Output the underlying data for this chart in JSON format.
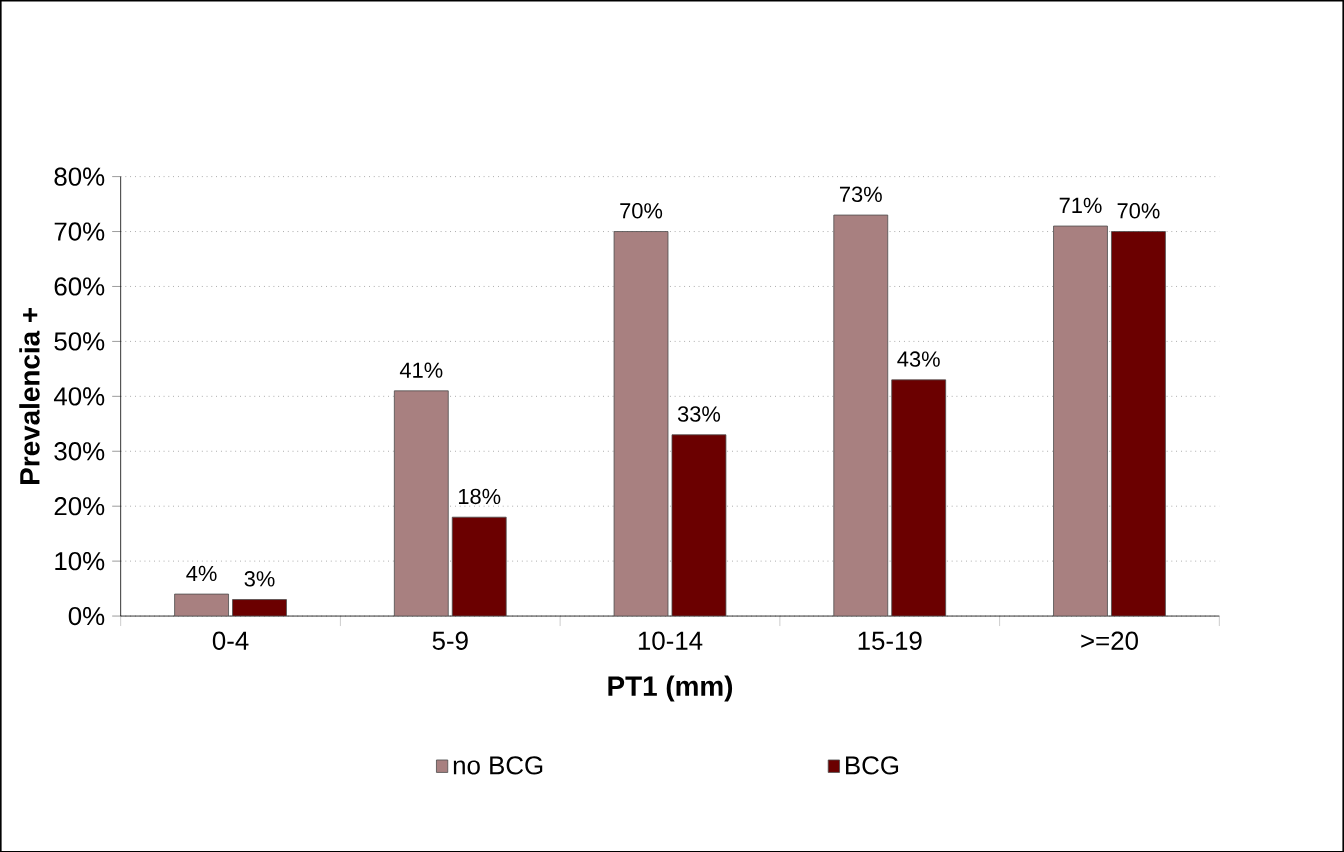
{
  "chart_data": {
    "type": "bar",
    "xlabel": "PT1 (mm)",
    "ylabel": "Prevalencia +",
    "categories": [
      "0-4",
      "5-9",
      "10-14",
      "15-19",
      ">=20"
    ],
    "series": [
      {
        "name": "no BCG",
        "color": "#a88080",
        "values": [
          4,
          41,
          70,
          73,
          71
        ],
        "value_labels": [
          "4%",
          "41%",
          "70%",
          "73%",
          "71%"
        ]
      },
      {
        "name": "BCG",
        "color": "#6b0000",
        "values": [
          3,
          18,
          33,
          43,
          70
        ],
        "value_labels": [
          "3%",
          "18%",
          "33%",
          "43%",
          "70%"
        ]
      }
    ],
    "ylim": [
      0,
      80
    ],
    "yticks": [
      {
        "value": 0,
        "label": "0%"
      },
      {
        "value": 10,
        "label": "10%"
      },
      {
        "value": 20,
        "label": "20%"
      },
      {
        "value": 30,
        "label": "30%"
      },
      {
        "value": 40,
        "label": "40%"
      },
      {
        "value": 50,
        "label": "50%"
      },
      {
        "value": 60,
        "label": "60%"
      },
      {
        "value": 70,
        "label": "70%"
      },
      {
        "value": 80,
        "label": "80%"
      }
    ],
    "grid": "y",
    "legend": "bottom"
  }
}
